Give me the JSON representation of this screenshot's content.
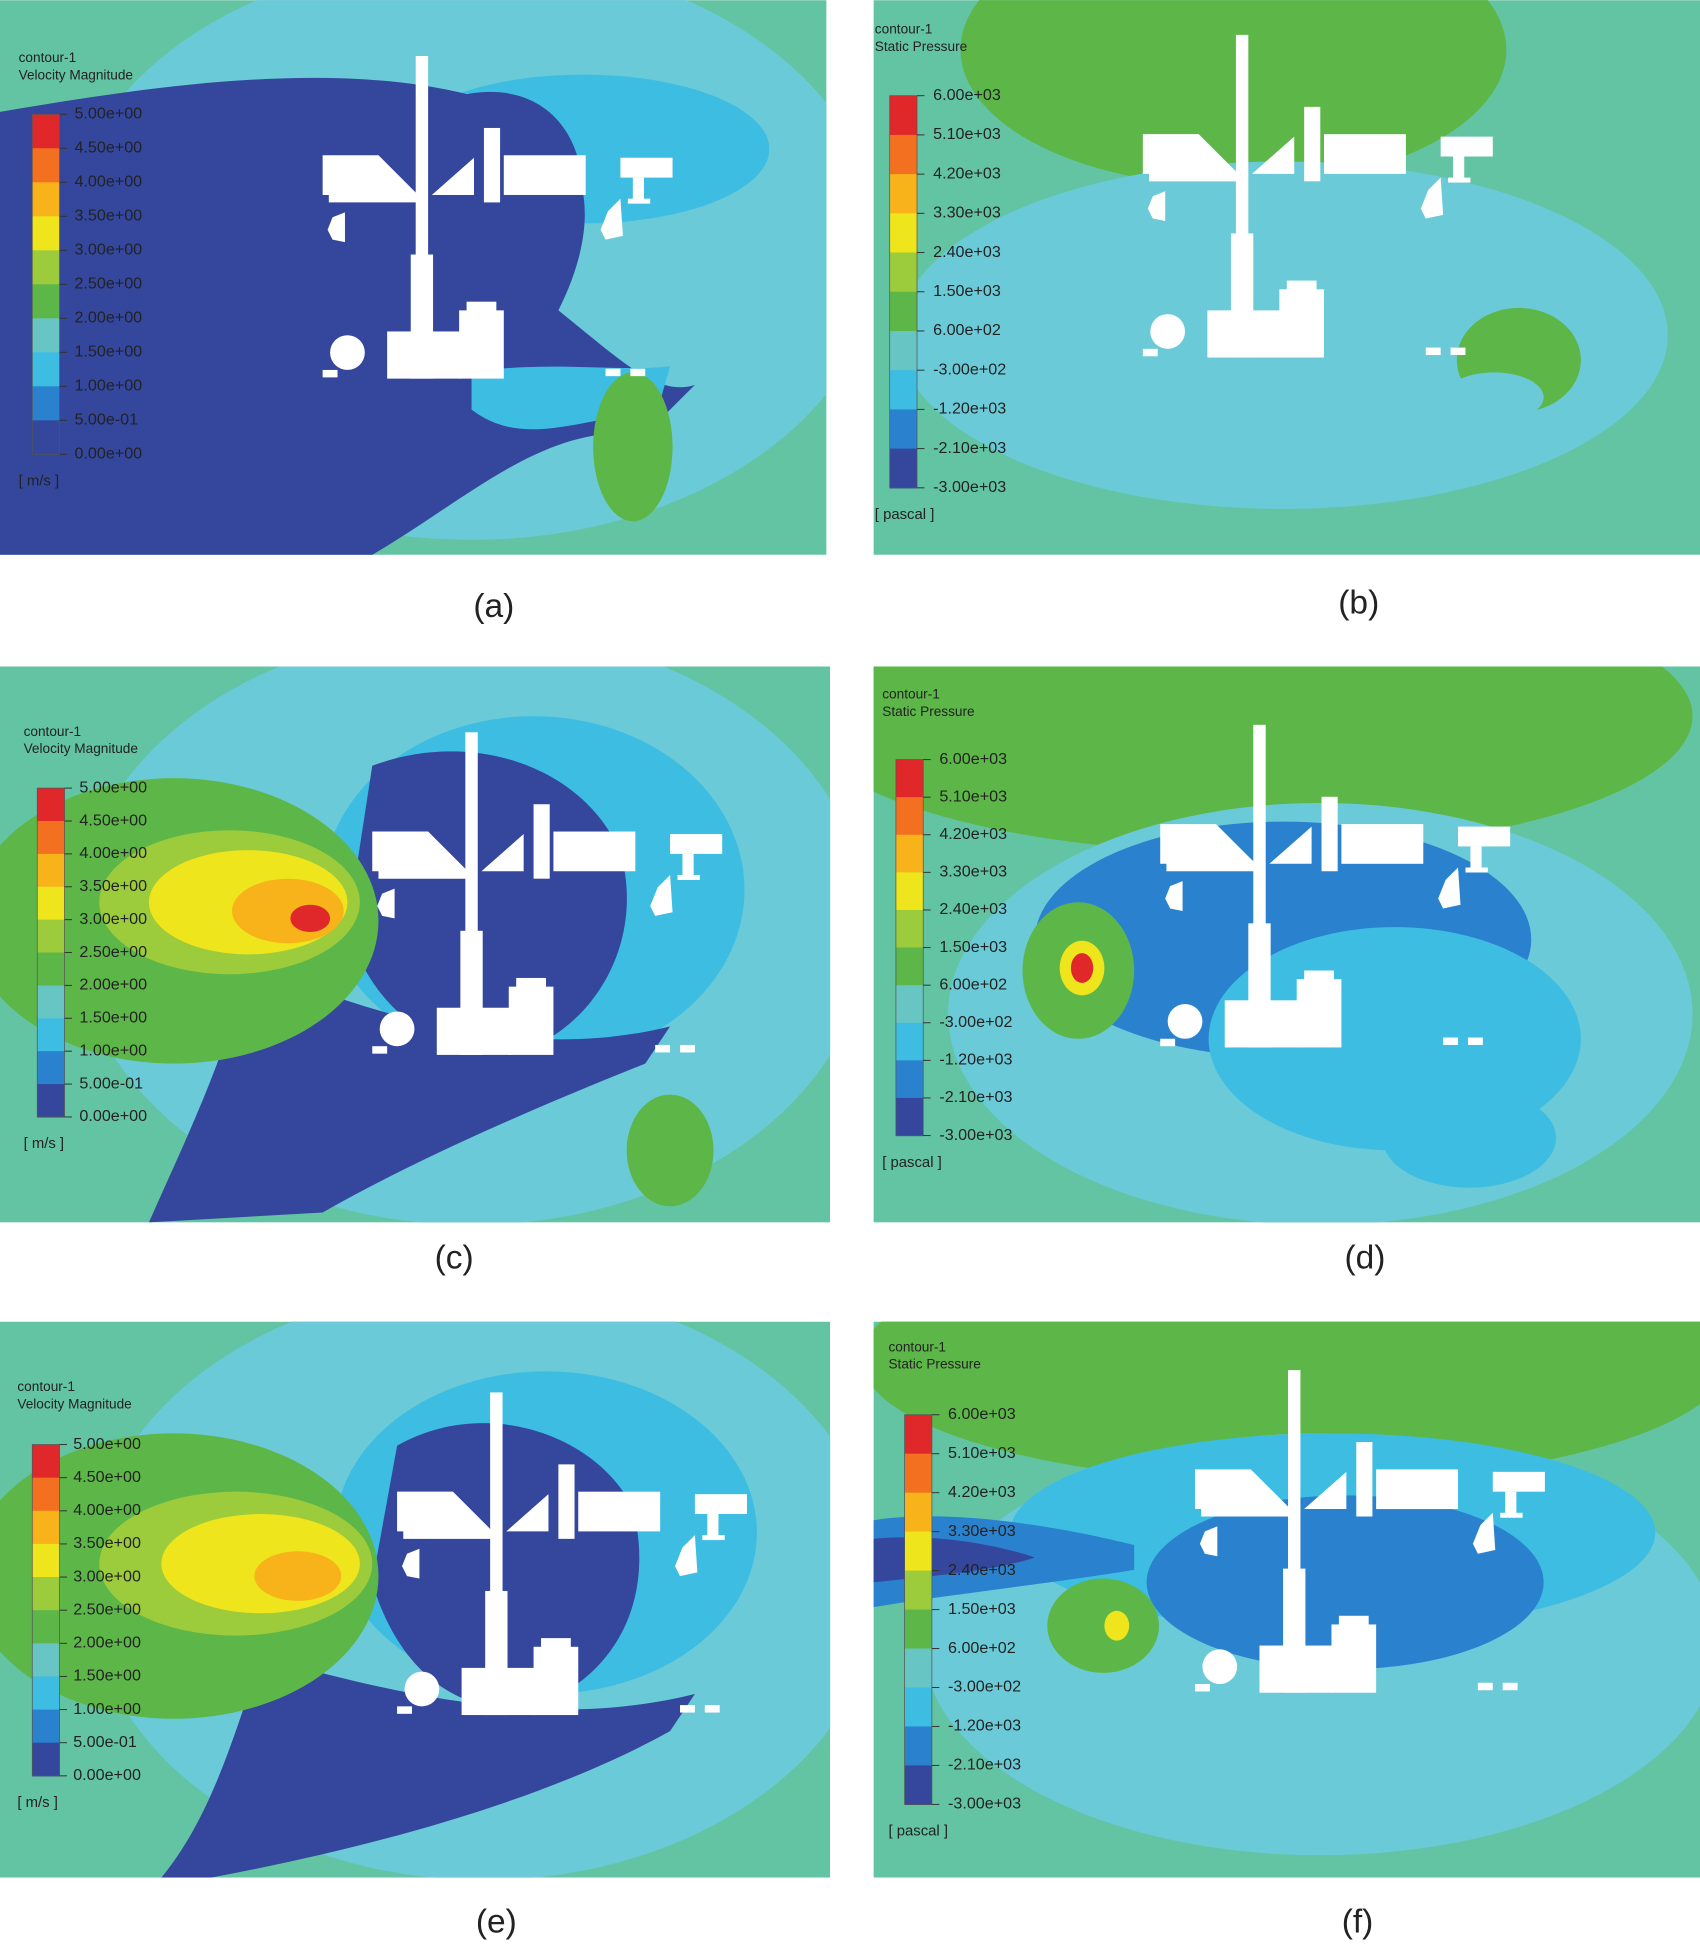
{
  "panels": [
    {
      "caption": "(a)",
      "legend": {
        "title": "contour-1",
        "variable": "Velocity Magnitude",
        "levels": [
          "5.00e+00",
          "4.50e+00",
          "4.00e+00",
          "3.50e+00",
          "3.00e+00",
          "2.50e+00",
          "2.00e+00",
          "1.50e+00",
          "1.00e+00",
          "5.00e-01",
          "0.00e+00"
        ],
        "unit": "[ m/s ]"
      }
    },
    {
      "caption": "(b)",
      "legend": {
        "title": "contour-1",
        "variable": "Static Pressure",
        "levels": [
          "6.00e+03",
          "5.10e+03",
          "4.20e+03",
          "3.30e+03",
          "2.40e+03",
          "1.50e+03",
          "6.00e+02",
          "-3.00e+02",
          "-1.20e+03",
          "-2.10e+03",
          "-3.00e+03"
        ],
        "unit": "[ pascal ]"
      }
    },
    {
      "caption": "(c)",
      "legend": {
        "title": "contour-1",
        "variable": "Velocity Magnitude",
        "levels": [
          "5.00e+00",
          "4.50e+00",
          "4.00e+00",
          "3.50e+00",
          "3.00e+00",
          "2.50e+00",
          "2.00e+00",
          "1.50e+00",
          "1.00e+00",
          "5.00e-01",
          "0.00e+00"
        ],
        "unit": "[ m/s ]"
      }
    },
    {
      "caption": "(d)",
      "legend": {
        "title": "contour-1",
        "variable": "Static Pressure",
        "levels": [
          "6.00e+03",
          "5.10e+03",
          "4.20e+03",
          "3.30e+03",
          "2.40e+03",
          "1.50e+03",
          "6.00e+02",
          "-3.00e+02",
          "-1.20e+03",
          "-2.10e+03",
          "-3.00e+03"
        ],
        "unit": "[ pascal ]"
      }
    },
    {
      "caption": "(e)",
      "legend": {
        "title": "contour-1",
        "variable": "Velocity Magnitude",
        "levels": [
          "5.00e+00",
          "4.50e+00",
          "4.00e+00",
          "3.50e+00",
          "3.00e+00",
          "2.50e+00",
          "2.00e+00",
          "1.50e+00",
          "1.00e+00",
          "5.00e-01",
          "0.00e+00"
        ],
        "unit": "[ m/s ]"
      }
    },
    {
      "caption": "(f)",
      "legend": {
        "title": "contour-1",
        "variable": "Static Pressure",
        "levels": [
          "6.00e+03",
          "5.10e+03",
          "4.20e+03",
          "3.30e+03",
          "2.40e+03",
          "1.50e+03",
          "6.00e+02",
          "-3.00e+02",
          "-1.20e+03",
          "-2.10e+03",
          "-3.00e+03"
        ],
        "unit": "[ pascal ]"
      }
    }
  ]
}
